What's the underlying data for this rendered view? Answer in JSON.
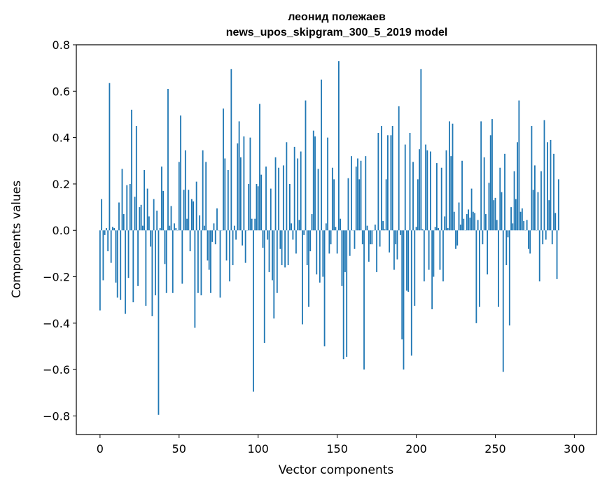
{
  "chart_data": {
    "type": "bar",
    "title": [
      "леонид полежаев",
      "news_upos_skipgram_300_5_2019 model"
    ],
    "xlabel": "Vector components",
    "ylabel": "Components values",
    "xlim": [
      -15,
      314
    ],
    "ylim": [
      -0.88,
      0.8
    ],
    "xticks": [
      0,
      50,
      100,
      150,
      200,
      250,
      300
    ],
    "xtick_labels": [
      "0",
      "50",
      "100",
      "150",
      "200",
      "250",
      "300"
    ],
    "yticks": [
      0.8,
      0.6,
      0.4,
      0.2,
      0.0,
      -0.2,
      -0.4,
      -0.6,
      -0.8
    ],
    "ytick_labels": [
      "0.8",
      "0.6",
      "0.4",
      "0.2",
      "0.0",
      "−0.2",
      "−0.4",
      "−0.6",
      "−0.8"
    ],
    "bar_color": "#1f77b4",
    "grid": false,
    "values": [
      -0.345,
      0.135,
      -0.215,
      -0.02,
      0.01,
      -0.09,
      0.635,
      -0.14,
      0.015,
      0.01,
      -0.225,
      -0.29,
      0.12,
      -0.3,
      0.265,
      0.07,
      -0.36,
      0.195,
      -0.205,
      0.2,
      0.52,
      -0.31,
      0.145,
      0.45,
      -0.24,
      0.1,
      0.11,
      0.02,
      0.26,
      -0.325,
      0.18,
      0.06,
      -0.07,
      -0.37,
      0.135,
      -0.28,
      0.085,
      -0.795,
      0.01,
      0.275,
      0.17,
      -0.145,
      -0.27,
      0.61,
      0.02,
      0.105,
      -0.27,
      0.03,
      0.01,
      0.0,
      0.295,
      0.495,
      -0.23,
      0.175,
      0.345,
      0.05,
      0.175,
      -0.09,
      0.135,
      0.125,
      -0.42,
      0.21,
      -0.27,
      0.065,
      -0.28,
      0.345,
      0.02,
      0.295,
      -0.13,
      -0.17,
      -0.27,
      -0.05,
      0.03,
      -0.06,
      0.095,
      0.0,
      -0.29,
      0.0,
      0.525,
      0.31,
      -0.13,
      0.26,
      -0.22,
      0.695,
      -0.15,
      0.02,
      -0.04,
      0.375,
      0.47,
      0.315,
      -0.065,
      0.405,
      -0.14,
      0.0,
      0.2,
      0.4,
      0.05,
      -0.695,
      0.05,
      0.2,
      0.19,
      0.545,
      0.24,
      -0.075,
      -0.485,
      0.275,
      -0.04,
      -0.18,
      0.18,
      -0.215,
      -0.38,
      0.315,
      -0.27,
      0.27,
      -0.08,
      -0.15,
      0.28,
      -0.16,
      0.38,
      -0.15,
      0.2,
      0.03,
      -0.04,
      0.36,
      -0.1,
      0.31,
      0.045,
      0.34,
      -0.405,
      -0.02,
      0.56,
      -0.15,
      -0.33,
      -0.09,
      0.07,
      0.43,
      0.405,
      -0.19,
      0.265,
      -0.225,
      0.65,
      -0.2,
      -0.5,
      0.03,
      0.4,
      -0.1,
      -0.06,
      0.27,
      0.22,
      0.015,
      -0.1,
      0.73,
      0.05,
      -0.24,
      -0.555,
      -0.18,
      -0.545,
      0.225,
      -0.11,
      0.32,
      0.0,
      -0.08,
      0.275,
      0.31,
      0.22,
      0.3,
      -0.06,
      -0.6,
      0.32,
      0.02,
      -0.135,
      -0.06,
      -0.06,
      0.0,
      0.025,
      -0.18,
      0.42,
      -0.07,
      0.45,
      0.04,
      0.005,
      0.22,
      0.41,
      -0.095,
      0.41,
      0.45,
      -0.17,
      -0.06,
      -0.125,
      0.535,
      -0.02,
      -0.47,
      -0.6,
      0.37,
      -0.26,
      -0.265,
      0.42,
      -0.54,
      0.295,
      -0.325,
      0.015,
      0.22,
      0.35,
      0.695,
      0.005,
      -0.22,
      0.37,
      0.345,
      -0.17,
      0.34,
      -0.34,
      -0.2,
      0.015,
      0.29,
      0.01,
      -0.17,
      0.27,
      -0.22,
      0.06,
      0.345,
      0.01,
      0.47,
      0.32,
      0.46,
      0.08,
      -0.08,
      -0.065,
      0.12,
      0.025,
      0.3,
      0.05,
      0.0,
      0.07,
      0.09,
      0.055,
      0.18,
      0.08,
      0.075,
      -0.4,
      0.045,
      -0.33,
      0.47,
      -0.06,
      0.315,
      0.07,
      -0.19,
      0.205,
      0.41,
      0.48,
      0.13,
      0.14,
      0.045,
      -0.33,
      0.27,
      0.165,
      -0.61,
      0.33,
      -0.15,
      -0.03,
      -0.41,
      0.1,
      0.03,
      0.255,
      0.135,
      0.38,
      0.56,
      0.08,
      0.095,
      0.04,
      0.0,
      0.045,
      -0.08,
      -0.1,
      0.45,
      0.175,
      0.28,
      0.0,
      0.165,
      -0.22,
      0.255,
      -0.06,
      0.475,
      -0.04,
      0.38,
      0.13,
      0.39,
      -0.06,
      0.33,
      0.075,
      -0.21,
      0.22
    ]
  }
}
